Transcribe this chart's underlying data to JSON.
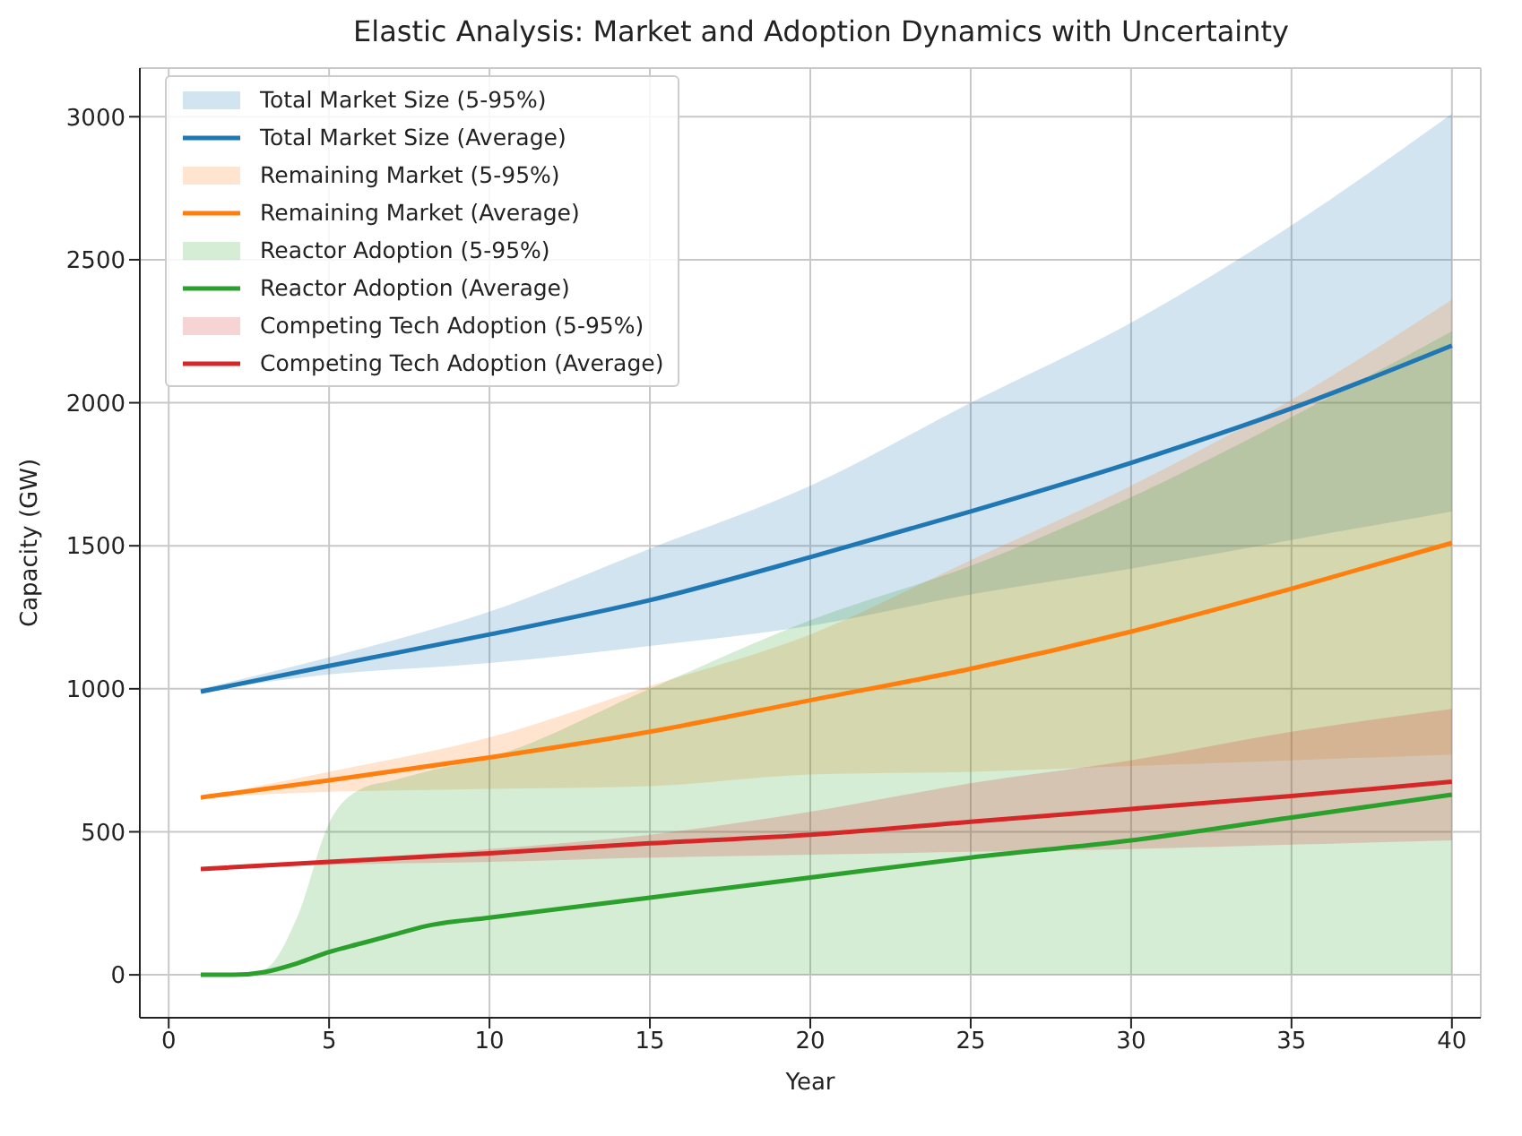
{
  "chart_data": {
    "type": "line",
    "title": "Elastic Analysis: Market and Adoption Dynamics with Uncertainty",
    "xlabel": "Year",
    "ylabel": "Capacity (GW)",
    "x": [
      1,
      5,
      10,
      15,
      20,
      25,
      30,
      35,
      40
    ],
    "xlim": [
      -0.9,
      40.9
    ],
    "xticks": [
      0,
      5,
      10,
      15,
      20,
      25,
      30,
      35,
      40
    ],
    "ylim": [
      -150,
      3170
    ],
    "yticks": [
      0,
      500,
      1000,
      1500,
      2000,
      2500,
      3000
    ],
    "grid": true,
    "legend": "top left",
    "annotations": [
      "Total Market Size (5-95%)",
      "Remaining Market (5-95%)",
      "Reactor Adoption (5-95%)",
      "Competing Tech Adoption (5-95%)"
    ],
    "series": [
      {
        "name": "Total Market Size (Average)",
        "color": "#1f77b4",
        "values": [
          990,
          1080,
          1190,
          1310,
          1460,
          1620,
          1790,
          1980,
          2200
        ],
        "lower": [
          990,
          1050,
          1090,
          1150,
          1220,
          1330,
          1420,
          1520,
          1620
        ],
        "upper": [
          1000,
          1110,
          1270,
          1490,
          1710,
          2000,
          2280,
          2620,
          3010
        ]
      },
      {
        "name": "Remaining Market (Average)",
        "color": "#ff7f0e",
        "values": [
          620,
          680,
          760,
          850,
          960,
          1070,
          1200,
          1350,
          1510
        ],
        "lower": [
          620,
          640,
          650,
          660,
          700,
          710,
          730,
          750,
          770
        ],
        "upper": [
          620,
          710,
          830,
          1010,
          1190,
          1450,
          1710,
          2010,
          2360
        ]
      },
      {
        "name": "Reactor Adoption (Average)",
        "color": "#2ca02c",
        "x": [
          1,
          2,
          3,
          4,
          5,
          6,
          7,
          8,
          10,
          15,
          20,
          25,
          30,
          35,
          40
        ],
        "values": [
          0,
          0,
          10,
          40,
          80,
          110,
          140,
          170,
          200,
          270,
          340,
          410,
          470,
          550,
          630
        ],
        "lower": [
          0,
          0,
          0,
          0,
          0,
          0,
          0,
          0,
          0,
          0,
          0,
          0,
          0,
          0,
          0
        ],
        "upper": [
          0,
          0,
          20,
          200,
          530,
          650,
          680,
          710,
          760,
          1000,
          1240,
          1430,
          1670,
          1950,
          2250
        ]
      },
      {
        "name": "Competing Tech Adoption (Average)",
        "color": "#d62728",
        "values": [
          370,
          395,
          425,
          460,
          490,
          535,
          580,
          625,
          675
        ],
        "lower": [
          370,
          385,
          395,
          410,
          420,
          430,
          440,
          455,
          470
        ],
        "upper": [
          370,
          400,
          440,
          490,
          570,
          670,
          750,
          850,
          930
        ]
      }
    ]
  }
}
